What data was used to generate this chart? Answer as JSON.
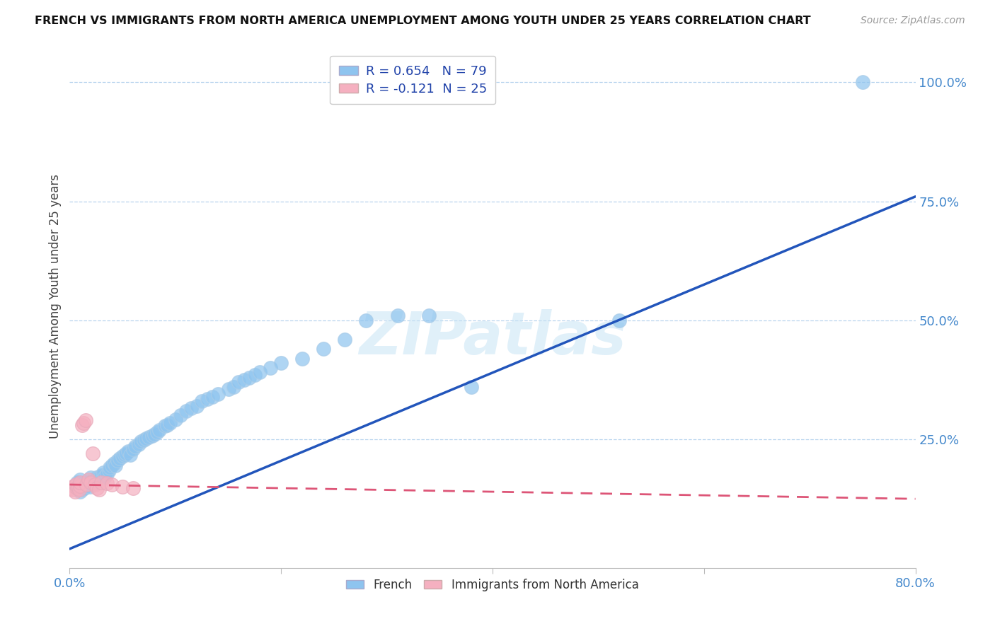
{
  "title": "FRENCH VS IMMIGRANTS FROM NORTH AMERICA UNEMPLOYMENT AMONG YOUTH UNDER 25 YEARS CORRELATION CHART",
  "source": "Source: ZipAtlas.com",
  "ylabel": "Unemployment Among Youth under 25 years",
  "xlim": [
    0.0,
    0.8
  ],
  "ylim": [
    -0.02,
    1.08
  ],
  "y_ticks_right": [
    0.25,
    0.5,
    0.75,
    1.0
  ],
  "y_tick_labels_right": [
    "25.0%",
    "50.0%",
    "75.0%",
    "100.0%"
  ],
  "french_R": 0.654,
  "french_N": 79,
  "immigrants_R": -0.121,
  "immigrants_N": 25,
  "french_color": "#8ec4ef",
  "french_line_color": "#2255bb",
  "immigrants_color": "#f5b0c0",
  "immigrants_line_color": "#dd5577",
  "watermark": "ZIPatlas",
  "french_x": [
    0.005,
    0.007,
    0.008,
    0.01,
    0.01,
    0.012,
    0.013,
    0.014,
    0.015,
    0.016,
    0.017,
    0.018,
    0.019,
    0.02,
    0.021,
    0.022,
    0.023,
    0.025,
    0.026,
    0.027,
    0.028,
    0.03,
    0.031,
    0.032,
    0.033,
    0.035,
    0.037,
    0.038,
    0.04,
    0.042,
    0.043,
    0.045,
    0.047,
    0.05,
    0.052,
    0.053,
    0.055,
    0.057,
    0.06,
    0.062,
    0.065,
    0.067,
    0.07,
    0.072,
    0.075,
    0.078,
    0.08,
    0.083,
    0.085,
    0.09,
    0.092,
    0.095,
    0.1,
    0.105,
    0.11,
    0.115,
    0.12,
    0.125,
    0.13,
    0.135,
    0.14,
    0.15,
    0.155,
    0.16,
    0.165,
    0.17,
    0.175,
    0.18,
    0.19,
    0.2,
    0.22,
    0.24,
    0.26,
    0.28,
    0.31,
    0.34,
    0.38,
    0.52,
    0.75
  ],
  "french_y": [
    0.15,
    0.16,
    0.155,
    0.14,
    0.165,
    0.145,
    0.155,
    0.148,
    0.152,
    0.16,
    0.158,
    0.162,
    0.15,
    0.17,
    0.155,
    0.165,
    0.16,
    0.17,
    0.158,
    0.165,
    0.172,
    0.175,
    0.168,
    0.18,
    0.172,
    0.178,
    0.185,
    0.19,
    0.195,
    0.2,
    0.195,
    0.205,
    0.21,
    0.215,
    0.218,
    0.22,
    0.225,
    0.218,
    0.23,
    0.235,
    0.24,
    0.245,
    0.248,
    0.252,
    0.255,
    0.258,
    0.26,
    0.265,
    0.27,
    0.278,
    0.28,
    0.285,
    0.292,
    0.3,
    0.31,
    0.315,
    0.32,
    0.33,
    0.335,
    0.34,
    0.345,
    0.355,
    0.36,
    0.37,
    0.375,
    0.38,
    0.385,
    0.392,
    0.4,
    0.41,
    0.42,
    0.44,
    0.46,
    0.5,
    0.51,
    0.51,
    0.36,
    0.5,
    1.0
  ],
  "immigrants_x": [
    0.002,
    0.003,
    0.004,
    0.005,
    0.006,
    0.007,
    0.008,
    0.009,
    0.01,
    0.01,
    0.012,
    0.013,
    0.015,
    0.016,
    0.018,
    0.02,
    0.022,
    0.024,
    0.026,
    0.028,
    0.03,
    0.035,
    0.04,
    0.05,
    0.06
  ],
  "immigrants_y": [
    0.148,
    0.145,
    0.152,
    0.14,
    0.155,
    0.148,
    0.15,
    0.145,
    0.152,
    0.16,
    0.28,
    0.285,
    0.29,
    0.155,
    0.165,
    0.16,
    0.22,
    0.155,
    0.148,
    0.145,
    0.16,
    0.158,
    0.155,
    0.15,
    0.148
  ],
  "french_line_x": [
    0.0,
    0.8
  ],
  "french_line_y": [
    0.02,
    0.76
  ],
  "immigrants_line_x": [
    0.0,
    0.8
  ],
  "immigrants_line_y": [
    0.155,
    0.125
  ]
}
